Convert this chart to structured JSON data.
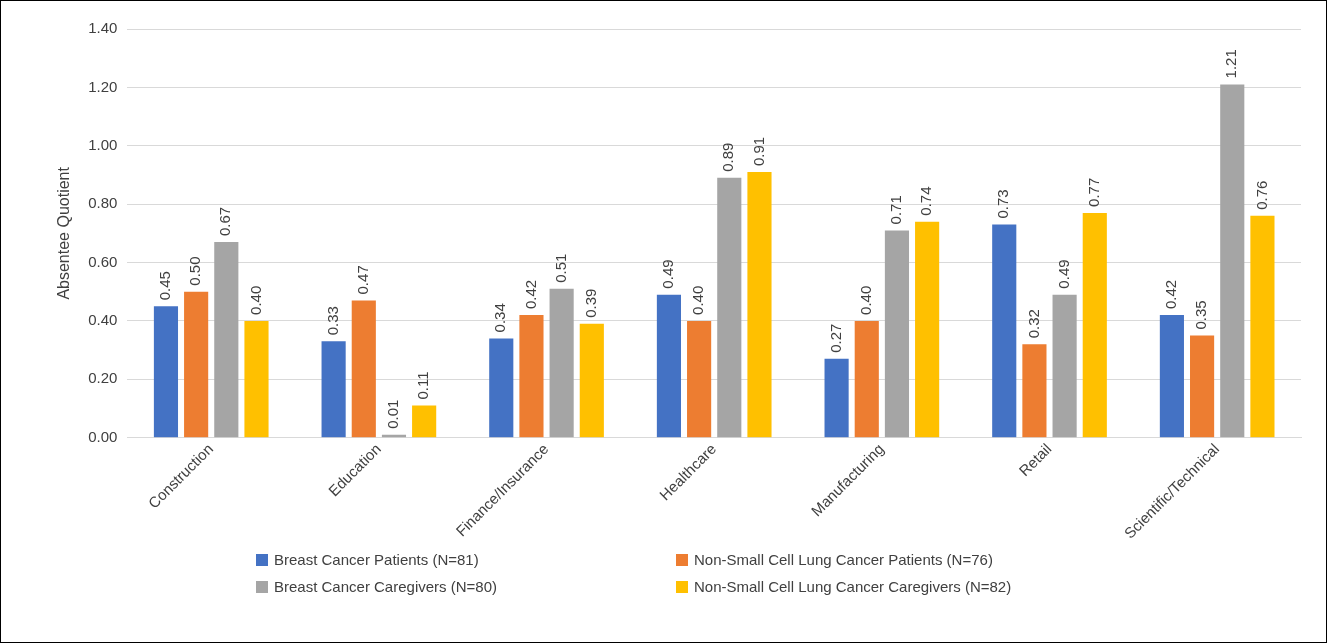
{
  "chart_data": {
    "type": "bar",
    "ylabel": "Absentee Quotient",
    "categories": [
      "Construction",
      "Education",
      "Finance/Insurance",
      "Healthcare",
      "Manufacturing",
      "Retail",
      "Scientific/Technical"
    ],
    "series": [
      {
        "name": "Breast Cancer Patients (N=81)",
        "color": "#4472c4",
        "values": [
          0.45,
          0.33,
          0.34,
          0.49,
          0.27,
          0.73,
          0.42
        ],
        "value_labels": [
          "0.45",
          "0.33",
          "0.34",
          "0.49",
          "0.27",
          "0.73",
          "0.42"
        ]
      },
      {
        "name": "Non-Small Cell Lung Cancer Patients (N=76)",
        "color": "#ed7d31",
        "values": [
          0.5,
          0.47,
          0.42,
          0.4,
          0.4,
          0.32,
          0.35
        ],
        "value_labels": [
          "0.50",
          "0.47",
          "0.42",
          "0.40",
          "0.40",
          "0.32",
          "0.35"
        ]
      },
      {
        "name": "Breast Cancer Caregivers (N=80)",
        "color": "#a5a5a5",
        "values": [
          0.67,
          0.01,
          0.51,
          0.89,
          0.71,
          0.49,
          1.21
        ],
        "value_labels": [
          "0.67",
          "0.01",
          "0.51",
          "0.89",
          "0.71",
          "0.49",
          "1.21"
        ]
      },
      {
        "name": "Non-Small Cell Lung Cancer Caregivers (N=82)",
        "color": "#ffc000",
        "values": [
          0.4,
          0.11,
          0.39,
          0.91,
          0.74,
          0.77,
          0.76
        ],
        "value_labels": [
          "0.40",
          "0.11",
          "0.39",
          "0.91",
          "0.74",
          "0.77",
          "0.76"
        ]
      }
    ],
    "ylim": [
      0,
      1.4
    ],
    "yticks": [
      {
        "value": 0,
        "label": "0.00"
      },
      {
        "value": 0.2,
        "label": "0.20"
      },
      {
        "value": 0.4,
        "label": "0.40"
      },
      {
        "value": 0.6,
        "label": "0.60"
      },
      {
        "value": 0.8,
        "label": "0.80"
      },
      {
        "value": 1.0,
        "label": "1.00"
      },
      {
        "value": 1.2,
        "label": "1.20"
      },
      {
        "value": 1.4,
        "label": "1.40"
      }
    ],
    "grid": "y",
    "legend": "bottom"
  }
}
